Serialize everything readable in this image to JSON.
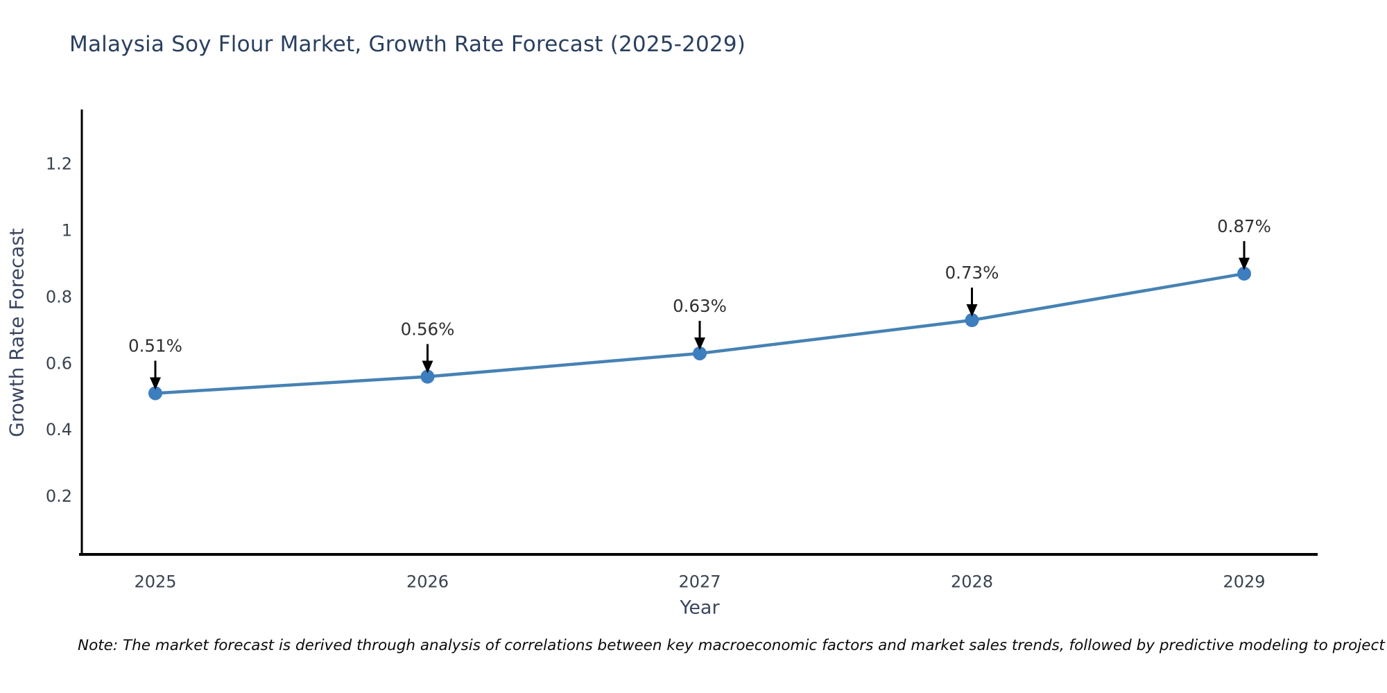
{
  "title": "Malaysia Soy Flour Market, Growth Rate Forecast (2025-2029)",
  "note": "Note: The market forecast is derived through analysis of correlations between key macroeconomic factors and market sales trends, followed by predictive modeling to project future sales",
  "chart_data": {
    "type": "line",
    "title": "Malaysia Soy Flour Market, Growth Rate Forecast (2025-2029)",
    "xlabel": "Year",
    "ylabel": "Growth Rate Forecast",
    "x": [
      2025,
      2026,
      2027,
      2028,
      2029
    ],
    "y": [
      0.51,
      0.56,
      0.63,
      0.73,
      0.87
    ],
    "point_labels": [
      "0.51%",
      "0.56%",
      "0.63%",
      "0.73%",
      "0.87%"
    ],
    "xticks": [
      2025,
      2026,
      2027,
      2028,
      2029
    ],
    "xtick_labels": [
      "2025",
      "2026",
      "2027",
      "2028",
      "2029"
    ],
    "yticks": [
      0.2,
      0.4,
      0.6,
      0.8,
      1,
      1.2
    ],
    "ytick_labels": [
      "0.2",
      "0.4",
      "0.6",
      "0.8",
      "1",
      "1.2"
    ],
    "xlim": [
      2024.73,
      2029.27
    ],
    "ylim": [
      0.025,
      1.36
    ],
    "grid": false,
    "legend": null,
    "annotation_style": "downward-black-arrow-to-point"
  },
  "colors": {
    "line": "#4682b4",
    "marker": "#3d7ebf",
    "spine": "#000000",
    "arrow": "#000000",
    "title_text": "#2a3f5f",
    "axis_title_text": "#3a4660",
    "tick_text": "#39434f",
    "annotation_text": "#303030",
    "note_text": "#0a0a0a",
    "background": "#ffffff"
  }
}
